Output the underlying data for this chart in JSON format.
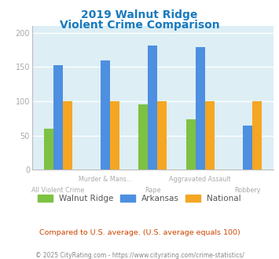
{
  "title_line1": "2019 Walnut Ridge",
  "title_line2": "Violent Crime Comparison",
  "title_color": "#1a7abf",
  "categories": [
    "All Violent Crime",
    "Murder & Mans...",
    "Rape",
    "Aggravated Assault",
    "Robbery"
  ],
  "cat_labels_row1": [
    "",
    "Murder & Mans...",
    "",
    "Aggravated Assault",
    ""
  ],
  "cat_labels_row2": [
    "All Violent Crime",
    "",
    "Rape",
    "",
    "Robbery"
  ],
  "series": {
    "Walnut Ridge": [
      60,
      0,
      95,
      73,
      0
    ],
    "Arkansas": [
      153,
      160,
      181,
      179,
      64
    ],
    "National": [
      100,
      100,
      100,
      100,
      100
    ]
  },
  "colors": {
    "Walnut Ridge": "#7dc242",
    "Arkansas": "#4d8fe0",
    "National": "#f5a623"
  },
  "ylim": [
    0,
    210
  ],
  "yticks": [
    0,
    50,
    100,
    150,
    200
  ],
  "bar_width": 0.2,
  "plot_bg": "#ddeef5",
  "legend_note": "Compared to U.S. average. (U.S. average equals 100)",
  "legend_note_color": "#cc4400",
  "footer": "© 2025 CityRating.com - https://www.cityrating.com/crime-statistics/",
  "footer_color": "#888888",
  "grid_color": "#ffffff",
  "xlabel_color": "#aaaaaa",
  "ytick_color": "#aaaaaa"
}
